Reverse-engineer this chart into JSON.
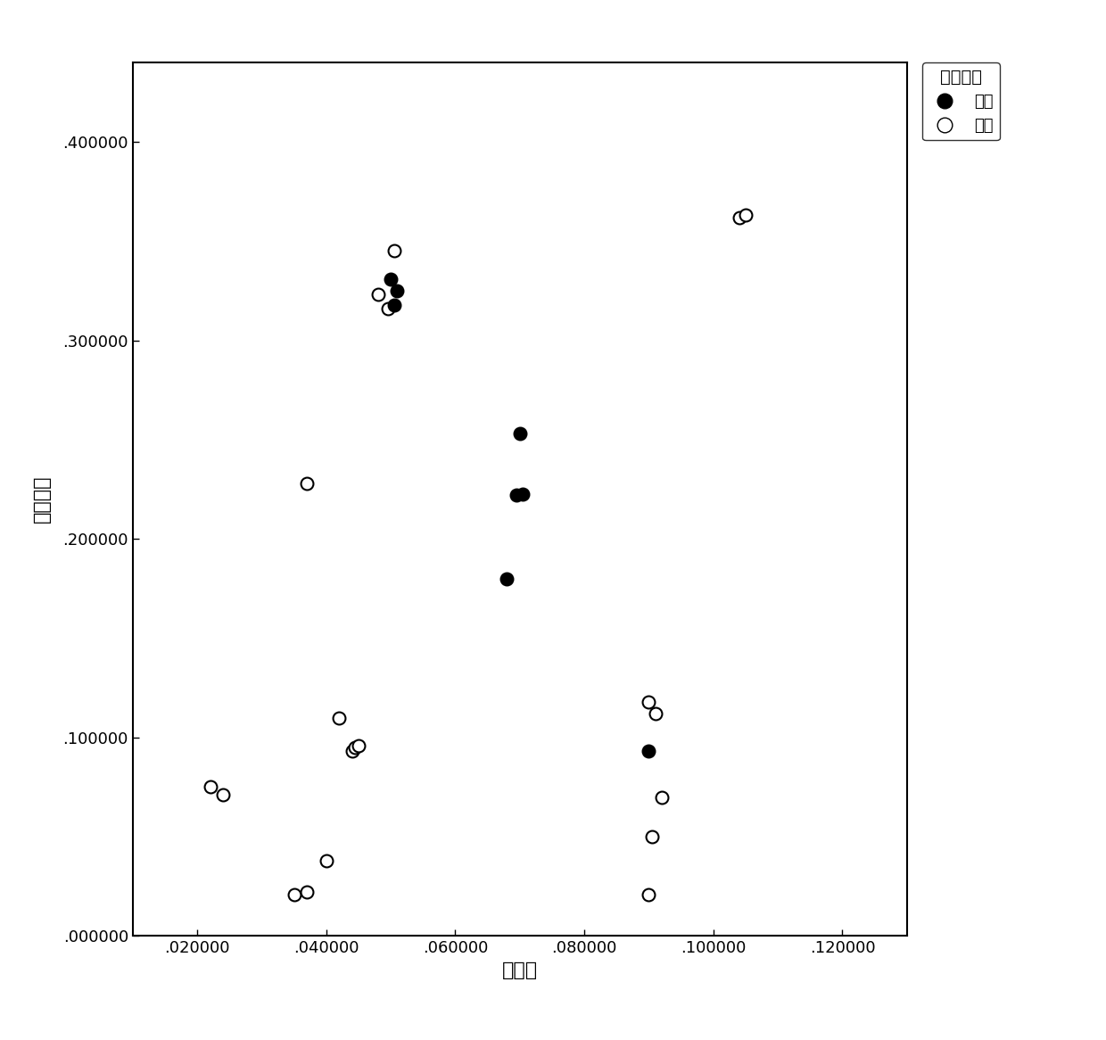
{
  "title": "",
  "xlabel": "均值差",
  "ylabel": "排列疵差",
  "legend_title": "是否变形",
  "legend_deformed": "变形",
  "legend_normal": "正常",
  "xlim": [
    0.01,
    0.13
  ],
  "ylim": [
    0.0,
    0.44
  ],
  "xticks": [
    0.02,
    0.04,
    0.06,
    0.08,
    0.1,
    0.12
  ],
  "yticks": [
    0.0,
    0.1,
    0.2,
    0.3,
    0.4
  ],
  "xtick_labels": [
    ".020000",
    ".040000",
    ".060000",
    ".080000",
    ".100000",
    ".120000"
  ],
  "ytick_labels": [
    ".000000",
    ".100000",
    ".200000",
    ".300000",
    ".400000"
  ],
  "deformed_x": [
    0.05,
    0.051,
    0.0505,
    0.07,
    0.0695,
    0.0705,
    0.068,
    0.09
  ],
  "deformed_y": [
    0.331,
    0.325,
    0.318,
    0.253,
    0.222,
    0.2225,
    0.18,
    0.093
  ],
  "normal_x": [
    0.022,
    0.024,
    0.035,
    0.037,
    0.04,
    0.042,
    0.044,
    0.0445,
    0.045,
    0.048,
    0.0495,
    0.0505,
    0.037,
    0.09,
    0.092,
    0.0905,
    0.091,
    0.09,
    0.104,
    0.105
  ],
  "normal_y": [
    0.075,
    0.071,
    0.021,
    0.022,
    0.038,
    0.11,
    0.093,
    0.095,
    0.096,
    0.323,
    0.316,
    0.345,
    0.228,
    0.021,
    0.07,
    0.05,
    0.112,
    0.118,
    0.362,
    0.363
  ],
  "marker_size": 100,
  "background_color": "#ffffff",
  "font_size_ticks": 13,
  "font_size_labels": 16,
  "font_size_legend_title": 14,
  "font_size_legend": 13
}
